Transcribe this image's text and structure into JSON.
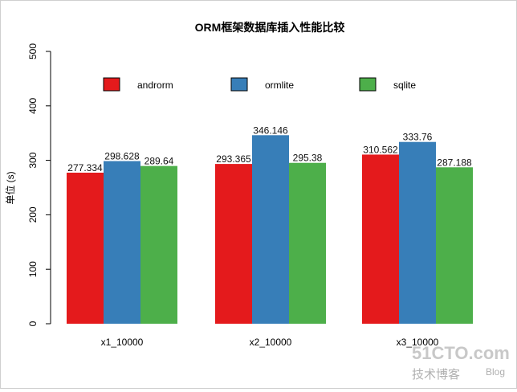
{
  "chart_data": {
    "type": "bar",
    "title": "ORM框架数据库插入性能比较",
    "xlabel": "",
    "ylabel": "单位 (s)",
    "ylim": [
      0,
      500
    ],
    "yticks": [
      0,
      100,
      200,
      300,
      400,
      500
    ],
    "categories": [
      "x1_10000",
      "x2_10000",
      "x3_10000"
    ],
    "series": [
      {
        "name": "androrm",
        "color": "#E41A1C",
        "values": [
          277.334,
          293.365,
          310.562
        ],
        "labels": [
          "277.334",
          "293.365",
          "310.562"
        ]
      },
      {
        "name": "ormlite",
        "color": "#377EB8",
        "values": [
          298.628,
          346.146,
          333.76
        ],
        "labels": [
          "298.628",
          "346.146",
          "333.76"
        ]
      },
      {
        "name": "sqlite",
        "color": "#4DAF4A",
        "values": [
          289.64,
          295.38,
          287.188
        ],
        "labels": [
          "289.64",
          "295.38",
          "287.188"
        ]
      }
    ],
    "legend": "top, horizontal",
    "grid": false
  },
  "watermark": {
    "logo": "51CTO.com",
    "subtitle": "技术博客",
    "blog": "Blog"
  }
}
